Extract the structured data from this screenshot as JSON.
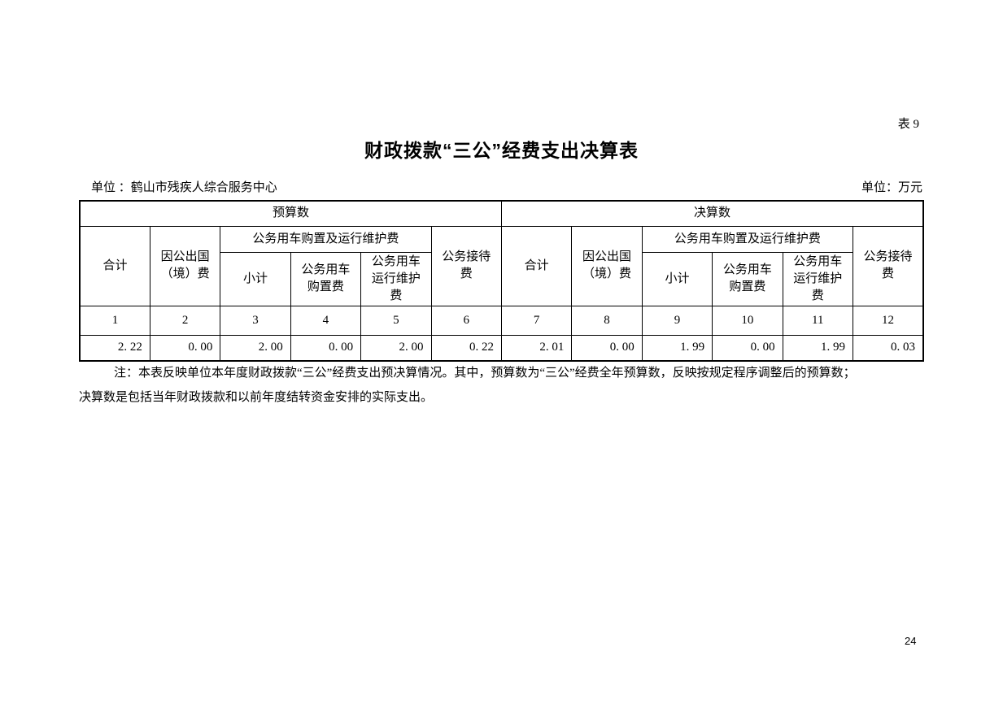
{
  "page": {
    "table_tag": "表 9",
    "title": "财政拨款“三公”经费支出决算表",
    "unit_label_left": "单位 ：鹤山市残疾人综合服务中心",
    "unit_label_right": "单位：万元",
    "page_number": "24"
  },
  "table": {
    "sections": [
      {
        "label": "预算数"
      },
      {
        "label": "决算数"
      }
    ],
    "headers": {
      "total": "合计",
      "abroad": "因公出国（境）费",
      "vehicle_group": "公务用车购置及运行维护费",
      "vehicle_subtotal": "小计",
      "vehicle_purchase": "公务用车购置费",
      "vehicle_maintenance": "公务用车运行维护费",
      "reception": "公务接待费"
    },
    "column_numbers": [
      "1",
      "2",
      "3",
      "4",
      "5",
      "6",
      "7",
      "8",
      "9",
      "10",
      "11",
      "12"
    ],
    "values": [
      "2. 22",
      "0. 00",
      "2. 00",
      "0. 00",
      "2. 00",
      "0. 22",
      "2. 01",
      "0. 00",
      "1. 99",
      "0. 00",
      "1. 99",
      "0. 03"
    ]
  },
  "note": {
    "line1": "注：本表反映单位本年度财政拨款“三公”经费支出预决算情况。其中，预算数为“三公”经费全年预算数，反映按规定程序调整后的预算数；",
    "line2": "决算数是包括当年财政拨款和以前年度结转资金安排的实际支出。"
  }
}
